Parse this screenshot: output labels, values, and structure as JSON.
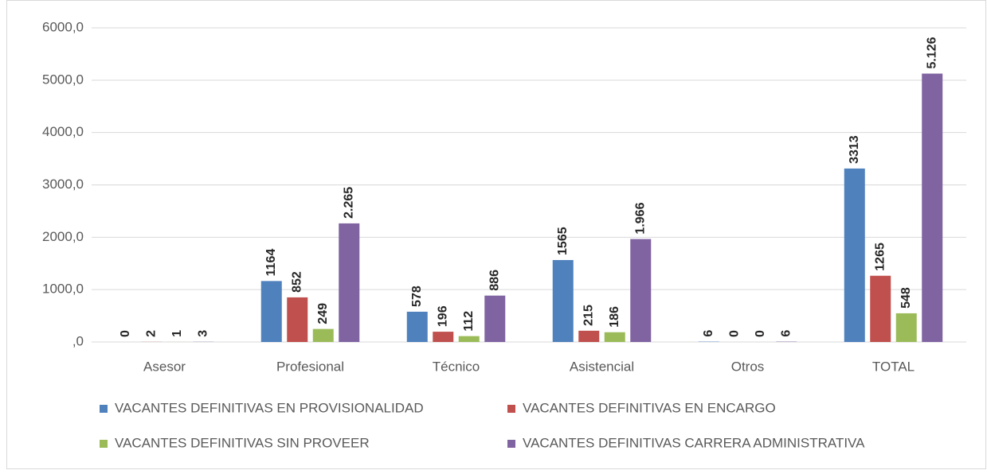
{
  "chart_data": {
    "type": "bar",
    "categories": [
      "Asesor",
      "Profesional",
      "Técnico",
      "Asistencial",
      "Otros",
      "TOTAL"
    ],
    "series": [
      {
        "name": "VACANTES DEFINITIVAS EN PROVISIONALIDAD",
        "color": "#4f81bd",
        "values": [
          0,
          1164,
          578,
          1565,
          6,
          3313
        ]
      },
      {
        "name": "VACANTES DEFINITIVAS EN ENCARGO",
        "color": "#c0504d",
        "values": [
          2,
          852,
          196,
          215,
          0,
          1265
        ]
      },
      {
        "name": "VACANTES DEFINITIVAS SIN PROVEER",
        "color": "#9bbb59",
        "values": [
          1,
          249,
          112,
          186,
          0,
          548
        ]
      },
      {
        "name": "VACANTES DEFINITIVAS CARRERA ADMINISTRATIVA",
        "color": "#8064a2",
        "values": [
          3,
          2265,
          886,
          1966,
          6,
          5126
        ],
        "value_labels": [
          "3",
          "2.265",
          "886",
          "1.966",
          "6",
          "5.126"
        ]
      }
    ],
    "ylim": [
      0,
      6000
    ],
    "yticks": [
      {
        "value": 0,
        "label": ",0"
      },
      {
        "value": 1000,
        "label": "1000,0"
      },
      {
        "value": 2000,
        "label": "2000,0"
      },
      {
        "value": 3000,
        "label": "3000,0"
      },
      {
        "value": 4000,
        "label": "4000,0"
      },
      {
        "value": 5000,
        "label": "5000,0"
      },
      {
        "value": 6000,
        "label": "6000,0"
      }
    ],
    "grid": true
  }
}
